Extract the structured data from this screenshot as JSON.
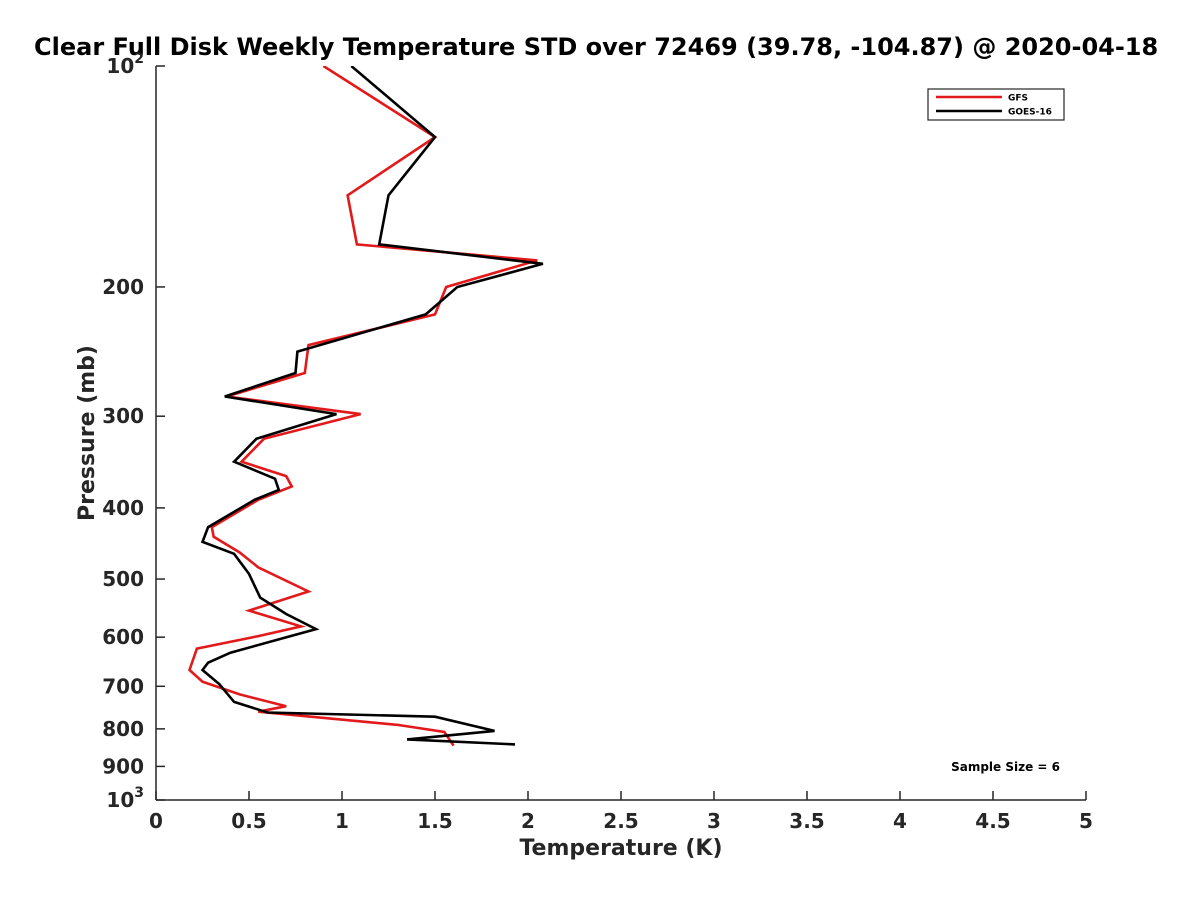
{
  "chart_data": {
    "type": "line",
    "title": "Clear Full Disk Weekly Temperature STD over 72469 (39.78, -104.87) @ 2020-04-18",
    "xlabel": "Temperature (K)",
    "ylabel": "Pressure (mb)",
    "xlim": [
      0,
      5
    ],
    "ylim": [
      100,
      1000
    ],
    "y_scale": "log",
    "y_reversed": true,
    "grid": false,
    "legend_position": "top-right",
    "x_ticks": [
      {
        "value": 0,
        "label": "0"
      },
      {
        "value": 0.5,
        "label": "0.5"
      },
      {
        "value": 1,
        "label": "1"
      },
      {
        "value": 1.5,
        "label": "1.5"
      },
      {
        "value": 2,
        "label": "2"
      },
      {
        "value": 2.5,
        "label": "2.5"
      },
      {
        "value": 3,
        "label": "3"
      },
      {
        "value": 3.5,
        "label": "3.5"
      },
      {
        "value": 4,
        "label": "4"
      },
      {
        "value": 4.5,
        "label": "4.5"
      },
      {
        "value": 5,
        "label": "5"
      }
    ],
    "y_ticks": [
      {
        "value": 100,
        "label": "10",
        "sup": "2"
      },
      {
        "value": 200,
        "label": "200",
        "sup": ""
      },
      {
        "value": 300,
        "label": "300",
        "sup": ""
      },
      {
        "value": 400,
        "label": "400",
        "sup": ""
      },
      {
        "value": 500,
        "label": "500",
        "sup": ""
      },
      {
        "value": 600,
        "label": "600",
        "sup": ""
      },
      {
        "value": 700,
        "label": "700",
        "sup": ""
      },
      {
        "value": 800,
        "label": "800",
        "sup": ""
      },
      {
        "value": 900,
        "label": "900",
        "sup": ""
      },
      {
        "value": 1000,
        "label": "10",
        "sup": "3"
      }
    ],
    "series": [
      {
        "name": "GFS",
        "color": "#e31a1c",
        "points": [
          [
            0.9,
            100
          ],
          [
            1.5,
            125
          ],
          [
            1.03,
            150
          ],
          [
            1.08,
            175
          ],
          [
            2.05,
            184
          ],
          [
            1.56,
            200
          ],
          [
            1.5,
            218
          ],
          [
            0.82,
            240
          ],
          [
            0.8,
            262
          ],
          [
            0.38,
            282
          ],
          [
            1.1,
            298
          ],
          [
            0.58,
            322
          ],
          [
            0.46,
            346
          ],
          [
            0.7,
            362
          ],
          [
            0.73,
            374
          ],
          [
            0.55,
            390
          ],
          [
            0.3,
            425
          ],
          [
            0.31,
            438
          ],
          [
            0.45,
            460
          ],
          [
            0.55,
            482
          ],
          [
            0.82,
            520
          ],
          [
            0.5,
            552
          ],
          [
            0.78,
            580
          ],
          [
            0.55,
            598
          ],
          [
            0.22,
            622
          ],
          [
            0.18,
            665
          ],
          [
            0.25,
            690
          ],
          [
            0.45,
            718
          ],
          [
            0.7,
            745
          ],
          [
            0.55,
            758
          ],
          [
            1.3,
            790
          ],
          [
            1.55,
            808
          ],
          [
            1.6,
            843
          ]
        ]
      },
      {
        "name": "GOES-16",
        "color": "#000000",
        "points": [
          [
            1.05,
            100
          ],
          [
            1.5,
            125
          ],
          [
            1.25,
            150
          ],
          [
            1.2,
            175
          ],
          [
            2.08,
            186
          ],
          [
            1.62,
            200
          ],
          [
            1.45,
            218
          ],
          [
            0.76,
            245
          ],
          [
            0.75,
            262
          ],
          [
            0.37,
            282
          ],
          [
            0.97,
            298
          ],
          [
            0.54,
            322
          ],
          [
            0.42,
            346
          ],
          [
            0.64,
            365
          ],
          [
            0.66,
            378
          ],
          [
            0.53,
            390
          ],
          [
            0.28,
            425
          ],
          [
            0.25,
            445
          ],
          [
            0.42,
            462
          ],
          [
            0.5,
            492
          ],
          [
            0.56,
            530
          ],
          [
            0.7,
            558
          ],
          [
            0.86,
            585
          ],
          [
            0.4,
            630
          ],
          [
            0.28,
            650
          ],
          [
            0.25,
            665
          ],
          [
            0.34,
            695
          ],
          [
            0.42,
            735
          ],
          [
            0.6,
            760
          ],
          [
            1.5,
            770
          ],
          [
            1.82,
            805
          ],
          [
            1.35,
            827
          ],
          [
            1.93,
            840
          ]
        ]
      }
    ],
    "annotation": "Sample Size = 6"
  }
}
